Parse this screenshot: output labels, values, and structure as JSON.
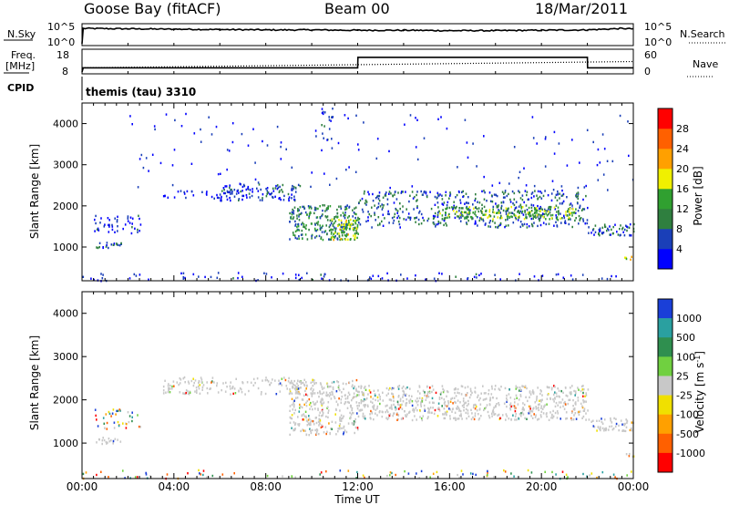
{
  "header": {
    "station": "Goose Bay (fitACF)",
    "beam": "Beam 00",
    "date": "18/Mar/2011"
  },
  "sky_panel": {
    "left_label": "N.Sky",
    "left_ticks": [
      "10^5",
      "10^0"
    ],
    "right_label": "N.Search",
    "right_ticks": [
      "10^5",
      "10^0"
    ]
  },
  "freq_panel": {
    "left_label_1": "Freq.",
    "left_label_2": "[MHz]",
    "left_ticks": [
      "18",
      "8"
    ],
    "right_label": "Nave",
    "right_ticks": [
      "60",
      "0"
    ]
  },
  "cpid_panel": {
    "label": "CPID",
    "program": "themis (tau) 3310"
  },
  "chart_data": [
    {
      "type": "line",
      "name": "noise-panel",
      "series": [
        {
          "name": "N.Sky",
          "style": "solid",
          "x_hours": [
            0,
            0.05,
            2,
            4,
            6,
            8,
            10,
            12,
            14,
            16,
            18,
            20,
            22,
            23.5,
            24
          ],
          "log_level": [
            0,
            4.2,
            4.1,
            4.0,
            3.9,
            3.8,
            3.8,
            3.7,
            3.7,
            3.6,
            3.6,
            3.7,
            3.8,
            4.2,
            4.1
          ]
        }
      ],
      "ylim": [
        0,
        5
      ]
    },
    {
      "type": "line",
      "name": "frequency-panel",
      "series": [
        {
          "name": "Freq.",
          "style": "solid",
          "x_hours": [
            0,
            0.05,
            12,
            12.01,
            22,
            22.01,
            24
          ],
          "values": [
            8,
            10,
            10,
            15,
            15,
            10,
            10
          ]
        },
        {
          "name": "Nave",
          "style": "dotted",
          "x_hours": [
            0,
            24
          ],
          "values": [
            10,
            13
          ]
        }
      ],
      "ylim": [
        8,
        18
      ]
    },
    {
      "type": "heatmap",
      "name": "power",
      "xlabel": "Time UT",
      "ylabel": "Slant Range [km]",
      "xlim_hours": [
        0,
        24
      ],
      "x_ticks": [
        "00:00",
        "04:00",
        "08:00",
        "12:00",
        "16:00",
        "20:00",
        "00:00"
      ],
      "ylim": [
        180,
        4500
      ],
      "y_ticks": [
        1000,
        2000,
        3000,
        4000
      ],
      "colorbar_label": "Power [dB]",
      "colorbar_ticks": [
        4,
        8,
        12,
        16,
        20,
        24,
        28
      ],
      "colorbar_colors": [
        "#0000ff",
        "#1a3fb8",
        "#2f7f3f",
        "#30a030",
        "#f0f000",
        "#ffa000",
        "#ff6000",
        "#ff0000"
      ],
      "scatter_regions": [
        {
          "t0": 0.6,
          "t1": 1.7,
          "r0": 1000,
          "r1": 1150,
          "level": 5,
          "density": 0.8
        },
        {
          "t0": 0.5,
          "t1": 2.6,
          "r0": 1350,
          "r1": 1800,
          "level": 3,
          "density": 0.3
        },
        {
          "t0": 3.5,
          "t1": 6.5,
          "r0": 2200,
          "r1": 2400,
          "level": 2,
          "density": 0.3
        },
        {
          "t0": 6.0,
          "t1": 9.5,
          "r0": 2150,
          "r1": 2550,
          "level": 4,
          "density": 0.5
        },
        {
          "t0": 9.0,
          "t1": 12.0,
          "r0": 1200,
          "r1": 2050,
          "level": 9,
          "density": 0.6
        },
        {
          "t0": 10.8,
          "t1": 12.0,
          "r0": 1200,
          "r1": 1700,
          "level": 15,
          "density": 0.8
        },
        {
          "t0": 12.0,
          "t1": 22.0,
          "r0": 1500,
          "r1": 2400,
          "level": 6,
          "density": 0.35
        },
        {
          "t0": 15.5,
          "t1": 21.5,
          "r0": 1700,
          "r1": 2000,
          "level": 12,
          "density": 0.7
        },
        {
          "t0": 22.0,
          "t1": 24.0,
          "r0": 1300,
          "r1": 1600,
          "level": 6,
          "density": 0.6
        },
        {
          "t0": 23.6,
          "t1": 24.0,
          "r0": 700,
          "r1": 800,
          "level": 17,
          "density": 0.8
        },
        {
          "t0": 10.4,
          "t1": 10.9,
          "r0": 3600,
          "r1": 4400,
          "level": 6,
          "density": 0.3
        },
        {
          "t0": 0.0,
          "t1": 24.0,
          "r0": 200,
          "r1": 400,
          "level": 3,
          "density": 0.12
        },
        {
          "t0": 2.0,
          "t1": 24.0,
          "r0": 2400,
          "r1": 4300,
          "level": 2,
          "density": 0.02
        }
      ]
    },
    {
      "type": "heatmap",
      "name": "velocity",
      "xlabel": "Time UT",
      "ylabel": "Slant Range [km]",
      "xlim_hours": [
        0,
        24
      ],
      "x_ticks": [
        "00:00",
        "04:00",
        "08:00",
        "12:00",
        "16:00",
        "20:00",
        "00:00"
      ],
      "ylim": [
        180,
        4500
      ],
      "y_ticks": [
        1000,
        2000,
        3000,
        4000
      ],
      "colorbar_label": "Velocity [m s^-1]",
      "colorbar_ticks": [
        1000,
        500,
        100,
        25,
        -25,
        -100,
        -500,
        -1000
      ],
      "colorbar_colors": [
        "#1a3fd8",
        "#2aa0a0",
        "#2f8f4f",
        "#70d040",
        "#c8c8c8",
        "#f0e000",
        "#ffa000",
        "#ff6000",
        "#ff0000"
      ],
      "scatter_regions": [
        {
          "t0": 0.6,
          "t1": 1.7,
          "r0": 1000,
          "r1": 1150,
          "level": "grey",
          "density": 0.7
        },
        {
          "t0": 0.5,
          "t1": 2.6,
          "r0": 1350,
          "r1": 1800,
          "level": "mixed",
          "density": 0.25
        },
        {
          "t0": 3.5,
          "t1": 9.5,
          "r0": 2150,
          "r1": 2550,
          "level": "grey",
          "density": 0.4
        },
        {
          "t0": 9.0,
          "t1": 12.0,
          "r0": 1200,
          "r1": 2500,
          "level": "grey",
          "density": 0.55
        },
        {
          "t0": 12.0,
          "t1": 22.0,
          "r0": 1550,
          "r1": 2350,
          "level": "grey",
          "density": 0.55
        },
        {
          "t0": 22.0,
          "t1": 24.0,
          "r0": 1300,
          "r1": 1600,
          "level": "grey",
          "density": 0.6
        },
        {
          "t0": 23.6,
          "t1": 24.0,
          "r0": 700,
          "r1": 800,
          "level": "grey",
          "density": 0.8
        },
        {
          "t0": 0.0,
          "t1": 24.0,
          "r0": 200,
          "r1": 400,
          "level": "mixed",
          "density": 0.12
        }
      ]
    }
  ]
}
